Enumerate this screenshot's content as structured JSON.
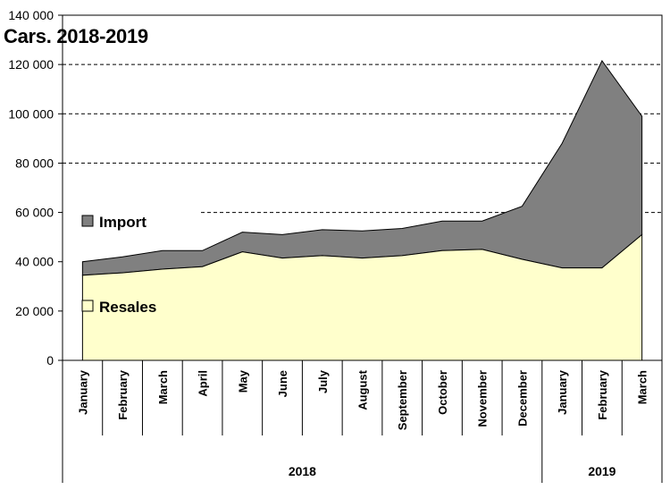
{
  "chart_data": {
    "type": "area",
    "stacked": true,
    "title": "Cars. 2018-2019",
    "categories": [
      "January",
      "February",
      "March",
      "April",
      "May",
      "June",
      "July",
      "August",
      "September",
      "October",
      "November",
      "December",
      "January",
      "February",
      "March"
    ],
    "groups": [
      {
        "label": "2018",
        "count": 12
      },
      {
        "label": "2019",
        "count": 3
      }
    ],
    "series": [
      {
        "name": "Resales",
        "color": "#ffffcc",
        "values": [
          34500,
          35500,
          37000,
          38000,
          44000,
          41500,
          42500,
          41500,
          42500,
          44500,
          45000,
          41000,
          37500,
          37500,
          51000
        ]
      },
      {
        "name": "Import",
        "color": "#808080",
        "values": [
          5500,
          6500,
          7500,
          6500,
          8000,
          9500,
          10500,
          11000,
          11000,
          12000,
          11500,
          21500,
          50500,
          84000,
          48000
        ]
      }
    ],
    "ylim": [
      0,
      140000
    ],
    "yticks": [
      "0",
      "20 000",
      "40 000",
      "60 000",
      "80 000",
      "100 000",
      "120 000",
      "140 000"
    ],
    "ytick_values": [
      0,
      20000,
      40000,
      60000,
      80000,
      100000,
      120000,
      140000
    ],
    "gridlines": [
      60000,
      80000,
      100000,
      120000
    ],
    "grid": "dashed",
    "legend": "left, inside plot"
  }
}
